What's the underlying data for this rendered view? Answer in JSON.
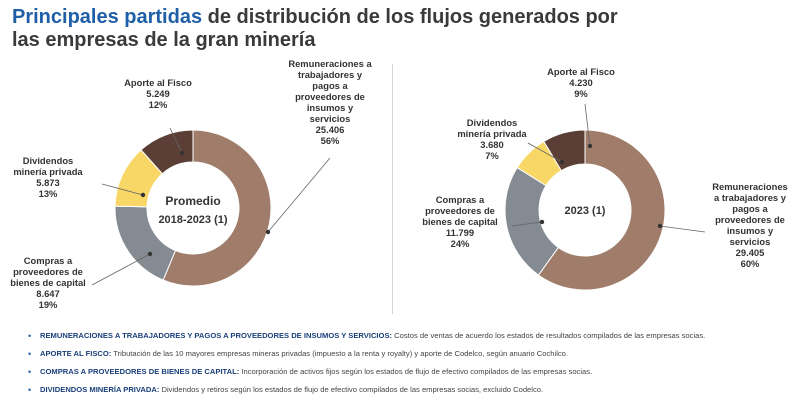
{
  "title": {
    "highlight": "Principales partidas",
    "rest": " de distribución de los flujos generados por",
    "line2": "las empresas de la gran minería"
  },
  "colors": {
    "brown": "#a07d6a",
    "gray": "#848b92",
    "yellow": "#f9d766",
    "dark": "#5b3f36",
    "accent": "#1f5fa8"
  },
  "chart_data": [
    {
      "type": "pie",
      "title": "Promedio",
      "subtitle": "2018-2023 (1)",
      "slices": [
        {
          "key": "rem",
          "lines": [
            "Remuneraciones a",
            "trabajadores y",
            "pagos a",
            "proveedores de",
            "insumos y",
            "servicios",
            "25.406",
            "56%"
          ],
          "value": 25406,
          "pct": 56,
          "color": "#a07d6a"
        },
        {
          "key": "comp",
          "lines": [
            "Compras a",
            "proveedores de",
            "bienes de capital",
            "8.647",
            "19%"
          ],
          "value": 8647,
          "pct": 19,
          "color": "#848b92"
        },
        {
          "key": "div",
          "lines": [
            "Dividendos",
            "minería privada",
            "5.873",
            "13%"
          ],
          "value": 5873,
          "pct": 13,
          "color": "#f9d766"
        },
        {
          "key": "fisco",
          "lines": [
            "Aporte al Fisco",
            "5.249",
            "12%"
          ],
          "value": 5249,
          "pct": 12,
          "color": "#5b3f36"
        }
      ]
    },
    {
      "type": "pie",
      "title": "2023 (1)",
      "subtitle": "",
      "slices": [
        {
          "key": "rem",
          "lines": [
            "Remuneraciones",
            "a trabajadores y",
            "pagos a",
            "proveedores de",
            "insumos y",
            "servicios",
            "29.405",
            "60%"
          ],
          "value": 29405,
          "pct": 60,
          "color": "#a07d6a"
        },
        {
          "key": "comp",
          "lines": [
            "Compras a",
            "proveedores de",
            "bienes de capital",
            "11.799",
            "24%"
          ],
          "value": 11799,
          "pct": 24,
          "color": "#848b92"
        },
        {
          "key": "div",
          "lines": [
            "Dividendos",
            "minería privada",
            "3.680",
            "7%"
          ],
          "value": 3680,
          "pct": 7,
          "color": "#f9d766"
        },
        {
          "key": "fisco",
          "lines": [
            "Aporte al Fisco",
            "4.230",
            "9%"
          ],
          "value": 4230,
          "pct": 9,
          "color": "#5b3f36"
        }
      ]
    }
  ],
  "notes": [
    {
      "term": "REMUNERACIONES A TRABAJADORES Y PAGOS A PROVEEDORES DE INSUMOS Y SERVICIOS:",
      "text": " Costos de ventas de acuerdo los estados de resultados compilados de las empresas socias."
    },
    {
      "term": "APORTE AL FISCO:",
      "text": " Tributación de las 10 mayores empresas mineras privadas (impuesto a la renta y royalty) y aporte de Codelco, según anuario Cochilco."
    },
    {
      "term": "COMPRAS A PROVEEDORES DE BIENES DE CAPITAL:",
      "text": " Incorporación de activos fijos según los estados de flujo de efectivo compilados de las empresas socias."
    },
    {
      "term": "DIVIDENDOS MINERÍA PRIVADA:",
      "text": " Dividendos y retiros según los estados de flujo de efectivo compilados de las empresas socias, excluido Codelco."
    }
  ]
}
